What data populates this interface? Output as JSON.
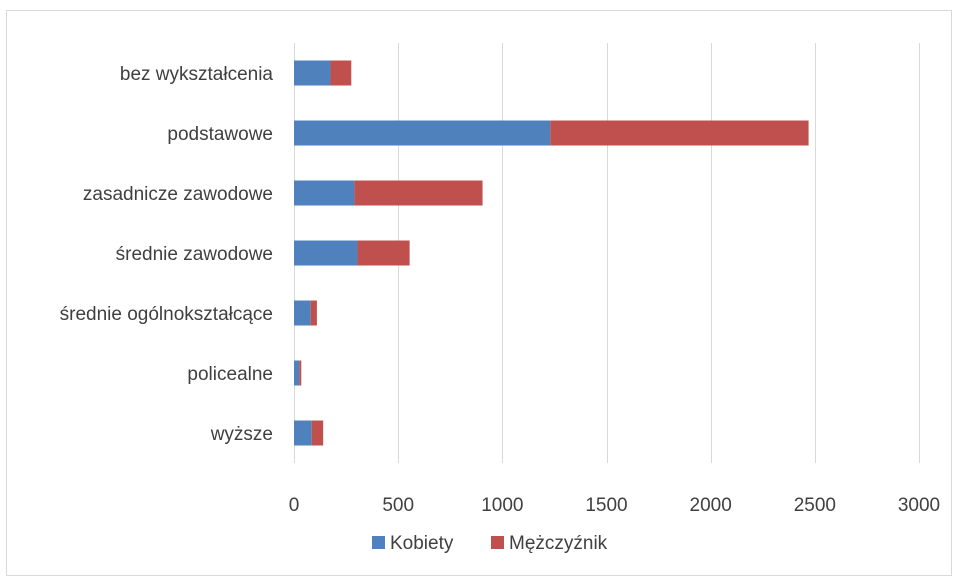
{
  "chart_data": {
    "type": "bar",
    "orientation": "horizontal",
    "stacked": true,
    "categories": [
      "bez wykształcenia",
      "podstawowe",
      "zasadnicze zawodowe",
      "średnie zawodowe",
      "średnie ogólnokształcące",
      "policealne",
      "wyższe"
    ],
    "series": [
      {
        "name": "Kobiety",
        "color": "#4f81bd",
        "values": [
          175,
          1230,
          290,
          305,
          80,
          25,
          85
        ]
      },
      {
        "name": "Mężczyźnik",
        "color": "#c0504d",
        "values": [
          100,
          1240,
          615,
          250,
          30,
          10,
          55
        ]
      }
    ],
    "xlim": [
      0,
      3000
    ],
    "xticks": [
      "0",
      "500",
      "1000",
      "1500",
      "2000",
      "2500",
      "3000"
    ],
    "xtick_values": [
      0,
      500,
      1000,
      1500,
      2000,
      2500,
      3000
    ],
    "grid": true,
    "legend_position": "bottom"
  }
}
